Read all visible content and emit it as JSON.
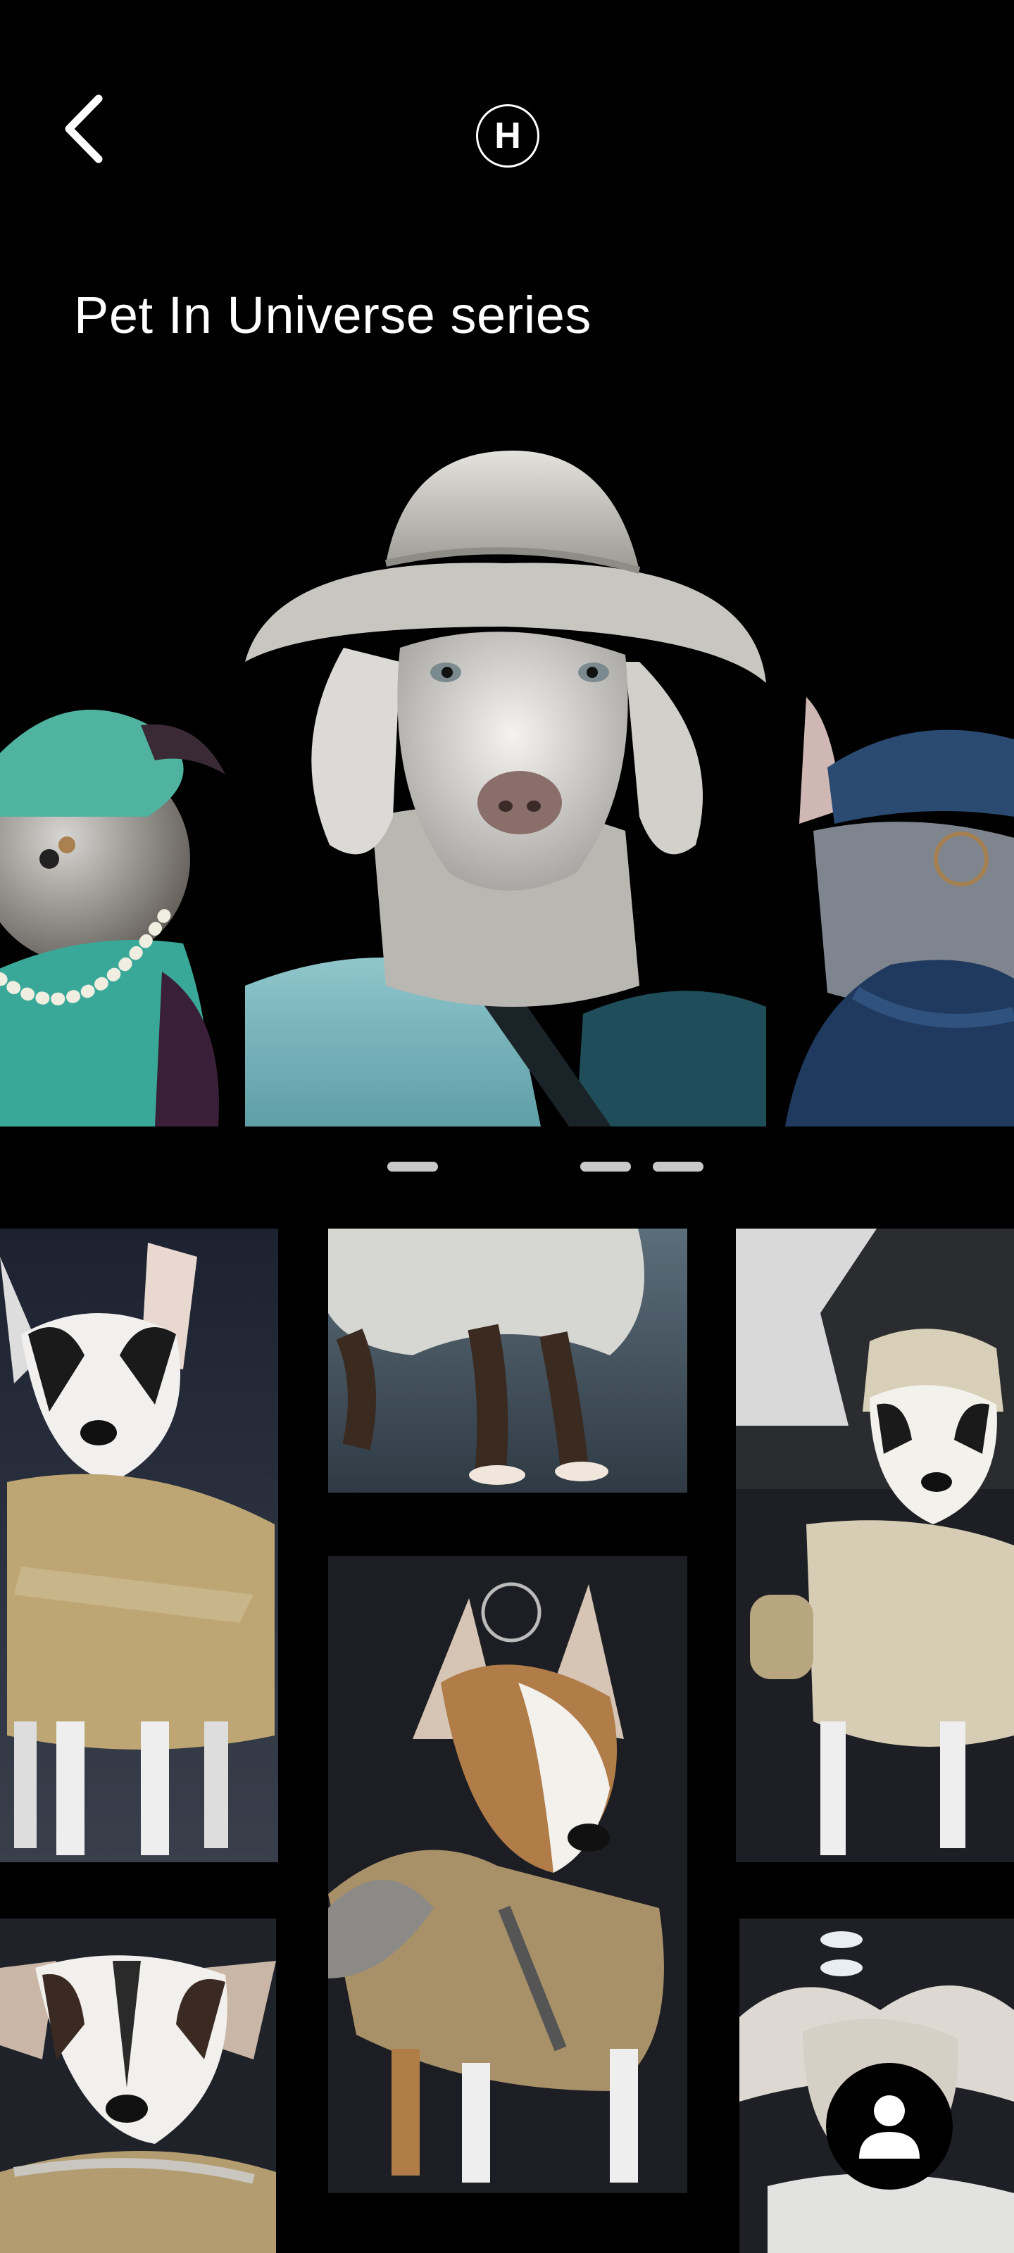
{
  "header": {
    "back_icon": "chevron-left-icon",
    "logo_letter": "H"
  },
  "page": {
    "title": "Pet In Universe series"
  },
  "carousel": {
    "slides": [
      {
        "subject": "dog-teal-turban-pearls"
      },
      {
        "subject": "weimaraner-white-hat-teal-jacket"
      },
      {
        "subject": "dog-blue-hat-blue-scarf"
      }
    ],
    "indicator_count": 3
  },
  "grid": {
    "tiles": [
      {
        "subject": "dog-gold-armor"
      },
      {
        "subject": "dog-white-cape-legs"
      },
      {
        "subject": "dog-white-space-suit"
      },
      {
        "subject": "dog-brass-rings-armor"
      },
      {
        "subject": "dog-gold-collar"
      },
      {
        "subject": "dog-white-hood"
      }
    ]
  },
  "fab": {
    "icon": "user-icon"
  },
  "colors": {
    "background": "#000000",
    "text": "#ffffff",
    "indicator": "#c9c9c9"
  }
}
